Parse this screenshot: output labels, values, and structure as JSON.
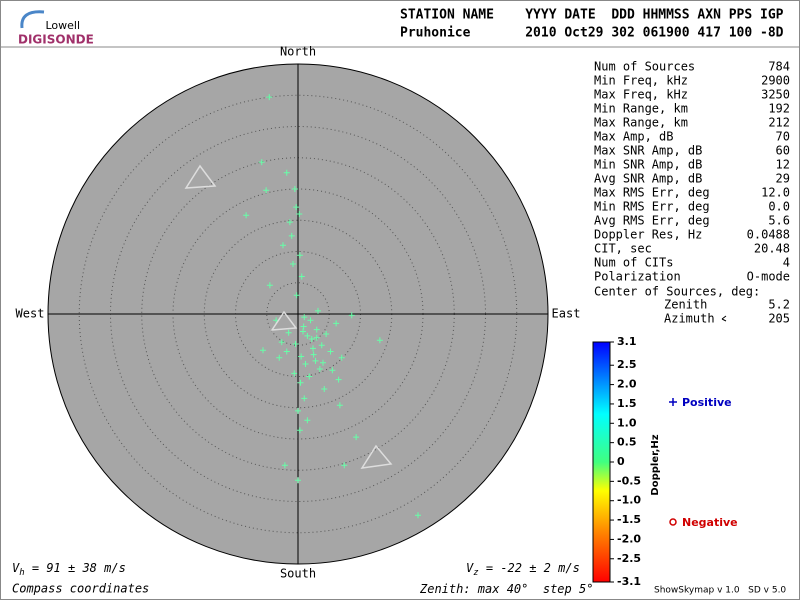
{
  "logo": {
    "line1": "Lowell",
    "line2": "DIGISONDE"
  },
  "header": {
    "columns": "STATION NAME    YYYY DATE  DDD HHMMSS AXN PPS IGP",
    "values": "Pruhonice       2010 Oct29 302 061900 417 100 -8D"
  },
  "stats": [
    [
      "Num of Sources",
      "784"
    ],
    [
      "Min Freq, kHz",
      "2900"
    ],
    [
      "Max Freq, kHz",
      "3250"
    ],
    [
      "Min Range, km",
      "192"
    ],
    [
      "Max Range, km",
      "212"
    ],
    [
      "Max Amp, dB",
      "70"
    ],
    [
      "Max SNR Amp, dB",
      "60"
    ],
    [
      "Min SNR Amp, dB",
      "12"
    ],
    [
      "Avg SNR Amp, dB",
      "29"
    ],
    [
      "Max RMS Err, deg",
      "12.0"
    ],
    [
      "Min RMS Err, deg",
      "0.0"
    ],
    [
      "Avg RMS Err, deg",
      "5.6"
    ],
    [
      "Doppler Res, Hz",
      "0.0488"
    ],
    [
      "CIT, sec",
      "20.48"
    ],
    [
      "Num of CITs",
      "4"
    ],
    [
      "Polarization",
      "O-mode"
    ]
  ],
  "center": {
    "title": "Center of Sources, deg:",
    "zenith_label": "Zenith",
    "zenith": "5.2",
    "azimuth_label": "Azimuth",
    "azimuth": "205"
  },
  "legend": {
    "positive": "Positive",
    "negative": "Negative"
  },
  "footer": {
    "vh": {
      "symbol": "V",
      "sub": "h",
      "text": " = 91 ± 38 m/s"
    },
    "vz": {
      "symbol": "V",
      "sub": "z",
      "text": " = -22 ± 2 m/s"
    },
    "coords": "Compass coordinates",
    "zenith": {
      "prefix": "Zenith: max ",
      "unit": "°",
      "step_prefix": "  step "
    },
    "version": "ShowSkymap v 1.0   SD v 5.0"
  },
  "chart_data": {
    "type": "scatter",
    "directions": {
      "north": "North",
      "south": "South",
      "east": "East",
      "west": "West"
    },
    "zenith_max": 40,
    "zenith_step": 5,
    "color": "#66ffa8",
    "points": {
      "x": [
        -4.6,
        -5.8,
        -1.8,
        -5.1,
        -8.3,
        -0.3,
        -1.3,
        -2.4,
        0.3,
        -4.5,
        8.6,
        13.1,
        6.7,
        9.3,
        7.4,
        -2.1,
        0,
        19.2,
        -5.6,
        0.3,
        -0.5,
        0.2,
        -1.0,
        -0.8,
        0.6,
        -0.2,
        -3.5,
        -1.5,
        0.9,
        1.5,
        2.2,
        3.0,
        3.8,
        4.5,
        5.2,
        6.1,
        7.0,
        2.5,
        1.2,
        -0.6,
        0.4,
        1.8,
        2.8,
        3.5,
        4.2,
        1.0,
        0.0,
        -1.8,
        -2.6,
        2.0,
        3.2,
        5.5,
        6.5,
        1.5,
        0.8,
        -0.4,
        2.4,
        4.0,
        -3.0,
        1.0,
        0.5,
        3.0
      ],
      "y": [
        34.7,
        24.3,
        22.6,
        19.8,
        15.8,
        17.1,
        14.7,
        11.0,
        9.4,
        4.6,
        -0.2,
        -4.2,
        -14.6,
        -19.7,
        -24.2,
        -24.2,
        -26.6,
        -32.2,
        -5.8,
        -18.6,
        20.0,
        16.0,
        12.5,
        8.0,
        6.0,
        3.0,
        -1.0,
        -3.0,
        -2.0,
        -3.5,
        -4.0,
        -2.5,
        -5.0,
        -3.2,
        -6.0,
        -1.5,
        -7.0,
        -6.5,
        -8.0,
        -9.5,
        -11.0,
        -10.0,
        -7.5,
        -8.8,
        -12.0,
        -13.5,
        -15.5,
        -6.0,
        -4.5,
        -1.0,
        0.5,
        -9.0,
        -10.5,
        -17.0,
        -2.8,
        -4.8,
        -5.5,
        -7.8,
        -7.0,
        -0.5,
        -6.8,
        -3.8
      ]
    },
    "colorbar": {
      "label": "Doppler,Hz",
      "ylim": [
        -3.1,
        3.1
      ],
      "yticks": [
        3.1,
        2.5,
        {
          "value": 2,
          "label": "2.0"
        },
        1.5,
        {
          "value": 1,
          "label": "1.0"
        },
        0.5,
        0,
        -0.5,
        {
          "value": -1,
          "label": "-1.0"
        },
        -1.5,
        {
          "value": -2,
          "label": "-2.0"
        },
        -2.5,
        -3.1
      ]
    }
  }
}
